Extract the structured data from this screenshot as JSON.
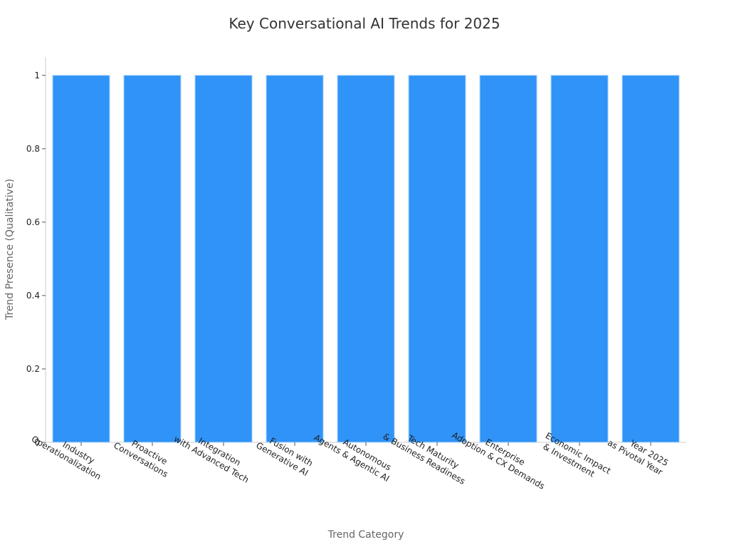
{
  "chart_data": {
    "type": "bar",
    "title": "Key Conversational AI Trends for 2025",
    "xlabel": "Trend Category",
    "ylabel": "Trend Presence (Qualitative)",
    "categories": [
      "Industry Operationalization",
      "Proactive Conversations",
      "Integration with Advanced Tech",
      "Fusion with Generative AI",
      "Autonomous Agents & Agentic AI",
      "Tech Maturity & Business Readiness",
      "Enterprise Adoption & CX Demands",
      "Economic Impact & Investment",
      "Year 2025 as Pivotal Year"
    ],
    "category_lines": [
      [
        "Industry",
        "Operationalization"
      ],
      [
        "Proactive",
        "Conversations"
      ],
      [
        "Integration",
        "with Advanced Tech"
      ],
      [
        "Fusion with",
        "Generative AI"
      ],
      [
        "Autonomous",
        "Agents & Agentic AI"
      ],
      [
        "Tech Maturity",
        "& Business Readiness"
      ],
      [
        "Enterprise",
        "Adoption & CX Demands"
      ],
      [
        "Economic Impact",
        "& Investment"
      ],
      [
        "Year 2025",
        "as Pivotal Year"
      ]
    ],
    "values": [
      1,
      1,
      1,
      1,
      1,
      1,
      1,
      1,
      1
    ],
    "ylim": [
      0,
      1.05
    ],
    "yticks": [
      0,
      0.2,
      0.4,
      0.6,
      0.8,
      1
    ],
    "ytick_labels": [
      "0",
      "0.2",
      "0.4",
      "0.6",
      "0.8",
      "1"
    ],
    "grid": false,
    "legend": "none",
    "bar_color": "#2f93f7",
    "axis_color": "#cccccc"
  }
}
